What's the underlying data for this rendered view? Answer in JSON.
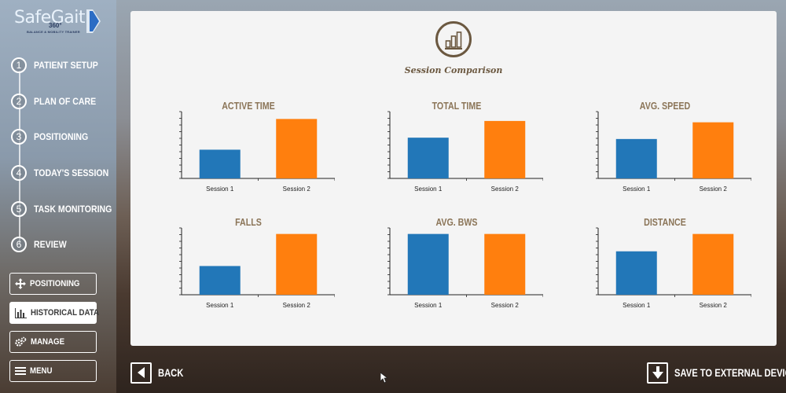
{
  "brand": {
    "name": "SafeGait",
    "version": "360°",
    "tagline": "BALANCE & MOBILITY TRAINER"
  },
  "steps": [
    {
      "num": "1",
      "label": "PATIENT SETUP"
    },
    {
      "num": "2",
      "label": "PLAN OF CARE"
    },
    {
      "num": "3",
      "label": "POSITIONING"
    },
    {
      "num": "4",
      "label": "TODAY'S SESSION"
    },
    {
      "num": "5",
      "label": "TASK MONITORING"
    },
    {
      "num": "6",
      "label": "REVIEW"
    }
  ],
  "side_buttons": [
    {
      "label": "POSITIONING",
      "icon": "move-arrows-icon",
      "active": false
    },
    {
      "label": "HISTORICAL DATA",
      "icon": "bar-chart-icon",
      "active": true
    },
    {
      "label": "MANAGE",
      "icon": "gears-icon",
      "active": false
    },
    {
      "label": "MENU",
      "icon": "hamburger-icon",
      "active": false
    }
  ],
  "page": {
    "title": "Session Comparison"
  },
  "nav": {
    "back": "BACK",
    "save": "SAVE TO EXTERNAL DEVICE"
  },
  "colors": {
    "session1": "#2277b8",
    "session2": "#ff7f0e",
    "title": "#8b7558"
  },
  "chart_data": [
    {
      "type": "bar",
      "title": "ACTIVE TIME",
      "categories": [
        "Session 1",
        "Session 2"
      ],
      "values": [
        0.43,
        0.89
      ]
    },
    {
      "type": "bar",
      "title": "TOTAL TIME",
      "categories": [
        "Session 1",
        "Session 2"
      ],
      "values": [
        0.61,
        0.86
      ]
    },
    {
      "type": "bar",
      "title": "AVG. SPEED",
      "categories": [
        "Session 1",
        "Session 2"
      ],
      "values": [
        0.59,
        0.84
      ]
    },
    {
      "type": "bar",
      "title": "FALLS",
      "categories": [
        "Session 1",
        "Session 2"
      ],
      "values": [
        0.43,
        0.91
      ]
    },
    {
      "type": "bar",
      "title": "AVG. BWS",
      "categories": [
        "Session 1",
        "Session 2"
      ],
      "values": [
        0.91,
        0.91
      ]
    },
    {
      "type": "bar",
      "title": "DISTANCE",
      "categories": [
        "Session 1",
        "Session 2"
      ],
      "values": [
        0.65,
        0.91
      ]
    }
  ]
}
